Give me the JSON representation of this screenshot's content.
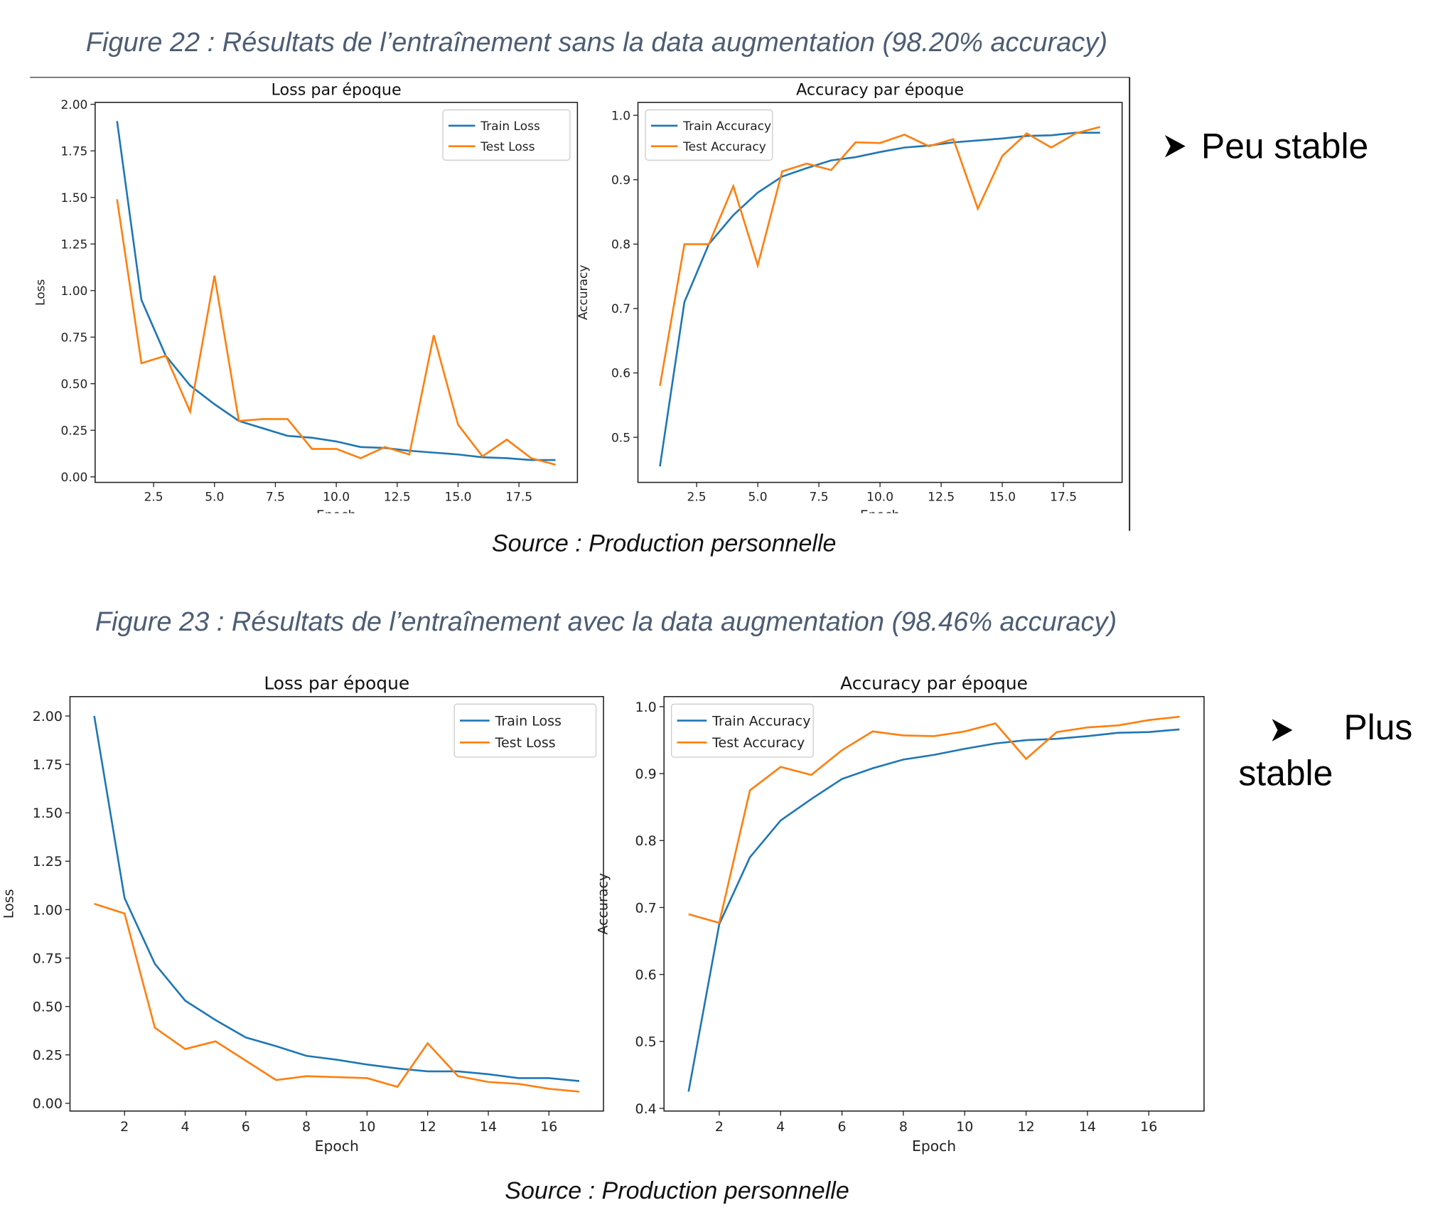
{
  "figures": [
    {
      "caption": "Figure 22 : Résultats de l’entraînement sans la data augmentation (98.20% accuracy)",
      "source": "Source : Production personnelle",
      "note": "Peu stable"
    },
    {
      "caption": "Figure 23 : Résultats de l’entraînement avec la data augmentation (98.46% accuracy)",
      "source": "Source : Production personnelle",
      "note": "Plus stable"
    }
  ],
  "chart_data": [
    {
      "type": "line",
      "title": "Loss par époque",
      "xlabel": "Epoch",
      "ylabel": "Loss",
      "legend": "upper right",
      "x": [
        1,
        2,
        3,
        4,
        5,
        6,
        7,
        8,
        9,
        10,
        11,
        12,
        13,
        14,
        15,
        16,
        17,
        18,
        19
      ],
      "series": [
        {
          "name": "Train Loss",
          "color": "#1f77b4",
          "values": [
            1.91,
            0.95,
            0.65,
            0.49,
            0.39,
            0.3,
            0.26,
            0.22,
            0.21,
            0.19,
            0.16,
            0.155,
            0.14,
            0.13,
            0.12,
            0.105,
            0.1,
            0.09,
            0.09
          ]
        },
        {
          "name": "Test Loss",
          "color": "#ff7f0e",
          "values": [
            1.49,
            0.61,
            0.65,
            0.35,
            1.08,
            0.3,
            0.31,
            0.31,
            0.15,
            0.15,
            0.1,
            0.16,
            0.12,
            0.76,
            0.28,
            0.11,
            0.2,
            0.1,
            0.065
          ]
        }
      ],
      "xlim": [
        0.1,
        19.9
      ],
      "xticks": [
        2.5,
        {
          "value": 5,
          "label": "5.0"
        },
        7.5,
        {
          "value": 10,
          "label": "10.0"
        },
        12.5,
        {
          "value": 15,
          "label": "15.0"
        },
        17.5
      ],
      "ylim": [
        -0.03,
        2.01
      ],
      "yticks": [
        {
          "value": 0,
          "label": "0.00"
        },
        0.25,
        {
          "value": 0.5,
          "label": "0.50"
        },
        0.75,
        {
          "value": 1,
          "label": "1.00"
        },
        1.25,
        {
          "value": 1.5,
          "label": "1.50"
        },
        1.75,
        {
          "value": 2,
          "label": "2.00"
        }
      ]
    },
    {
      "type": "line",
      "title": "Accuracy par époque",
      "xlabel": "Epoch",
      "ylabel": "Accuracy",
      "legend": "upper left",
      "x": [
        1,
        2,
        3,
        4,
        5,
        6,
        7,
        8,
        9,
        10,
        11,
        12,
        13,
        14,
        15,
        16,
        17,
        18,
        19
      ],
      "series": [
        {
          "name": "Train Accuracy",
          "color": "#1f77b4",
          "values": [
            0.455,
            0.71,
            0.8,
            0.845,
            0.88,
            0.905,
            0.918,
            0.93,
            0.935,
            0.943,
            0.95,
            0.953,
            0.958,
            0.961,
            0.964,
            0.968,
            0.969,
            0.973,
            0.973
          ]
        },
        {
          "name": "Test Accuracy",
          "color": "#ff7f0e",
          "values": [
            0.58,
            0.8,
            0.8,
            0.89,
            0.767,
            0.913,
            0.925,
            0.915,
            0.958,
            0.957,
            0.97,
            0.952,
            0.963,
            0.855,
            0.937,
            0.972,
            0.95,
            0.972,
            0.982
          ]
        }
      ],
      "xlim": [
        0.1,
        19.9
      ],
      "xticks": [
        2.5,
        {
          "value": 5,
          "label": "5.0"
        },
        7.5,
        {
          "value": 10,
          "label": "10.0"
        },
        12.5,
        {
          "value": 15,
          "label": "15.0"
        },
        17.5
      ],
      "ylim": [
        0.43,
        1.02
      ],
      "yticks": [
        0.5,
        0.6,
        0.7,
        0.8,
        0.9,
        {
          "value": 1,
          "label": "1.0"
        }
      ]
    },
    {
      "type": "line",
      "title": "Loss par époque",
      "xlabel": "Epoch",
      "ylabel": "Loss",
      "legend": "upper right",
      "x": [
        1,
        2,
        3,
        4,
        5,
        6,
        7,
        8,
        9,
        10,
        11,
        12,
        13,
        14,
        15,
        16,
        17
      ],
      "series": [
        {
          "name": "Train Loss",
          "color": "#1f77b4",
          "values": [
            2.0,
            1.06,
            0.72,
            0.53,
            0.43,
            0.34,
            0.295,
            0.245,
            0.225,
            0.2,
            0.18,
            0.165,
            0.165,
            0.15,
            0.13,
            0.13,
            0.115
          ]
        },
        {
          "name": "Test Loss",
          "color": "#ff7f0e",
          "values": [
            1.03,
            0.98,
            0.39,
            0.28,
            0.32,
            0.22,
            0.12,
            0.14,
            0.135,
            0.13,
            0.085,
            0.31,
            0.14,
            0.11,
            0.1,
            0.075,
            0.06
          ]
        }
      ],
      "xlim": [
        0.2,
        17.8
      ],
      "xticks": [
        2,
        4,
        6,
        8,
        10,
        12,
        14,
        16
      ],
      "ylim": [
        -0.04,
        2.1
      ],
      "yticks": [
        {
          "value": 0,
          "label": "0.00"
        },
        0.25,
        {
          "value": 0.5,
          "label": "0.50"
        },
        0.75,
        {
          "value": 1,
          "label": "1.00"
        },
        1.25,
        {
          "value": 1.5,
          "label": "1.50"
        },
        1.75,
        {
          "value": 2,
          "label": "2.00"
        }
      ]
    },
    {
      "type": "line",
      "title": "Accuracy par époque",
      "xlabel": "Epoch",
      "ylabel": "Accuracy",
      "legend": "upper left",
      "x": [
        1,
        2,
        3,
        4,
        5,
        6,
        7,
        8,
        9,
        10,
        11,
        12,
        13,
        14,
        15,
        16,
        17
      ],
      "series": [
        {
          "name": "Train Accuracy",
          "color": "#1f77b4",
          "values": [
            0.425,
            0.675,
            0.775,
            0.83,
            0.862,
            0.892,
            0.908,
            0.921,
            0.928,
            0.937,
            0.945,
            0.95,
            0.952,
            0.956,
            0.961,
            0.962,
            0.966
          ]
        },
        {
          "name": "Test Accuracy",
          "color": "#ff7f0e",
          "values": [
            0.69,
            0.677,
            0.875,
            0.91,
            0.898,
            0.935,
            0.963,
            0.957,
            0.956,
            0.963,
            0.975,
            0.922,
            0.962,
            0.969,
            0.972,
            0.98,
            0.985
          ]
        }
      ],
      "xlim": [
        0.2,
        17.8
      ],
      "xticks": [
        2,
        4,
        6,
        8,
        10,
        12,
        14,
        16
      ],
      "ylim": [
        0.396,
        1.015
      ],
      "yticks": [
        0.4,
        0.5,
        0.6,
        0.7,
        0.8,
        0.9,
        {
          "value": 1,
          "label": "1.0"
        }
      ]
    }
  ]
}
